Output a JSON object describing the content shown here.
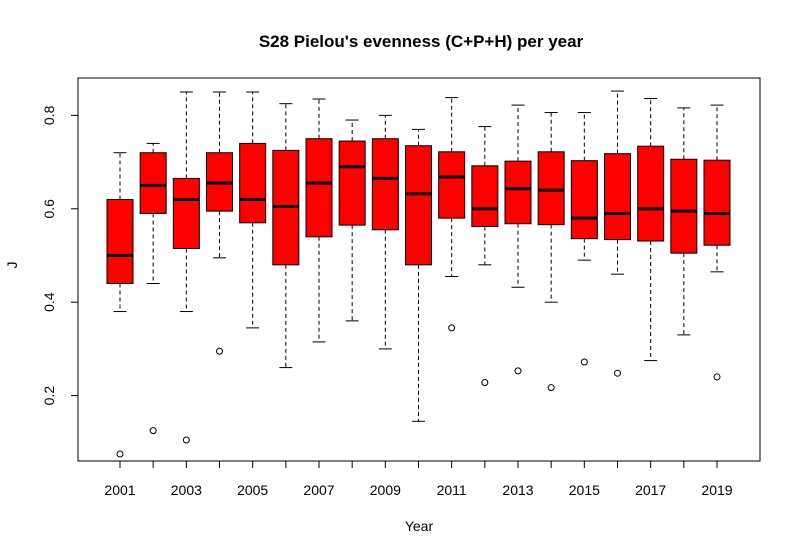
{
  "chart_data": {
    "type": "boxplot",
    "title": "S28 Pielou's evenness (C+P+H) per year",
    "xlabel": "Year",
    "ylabel": "J",
    "ylim": [
      0.06,
      0.88
    ],
    "y_ticks": [
      "0.2",
      "0.4",
      "0.6",
      "0.8"
    ],
    "x_tick_labels": [
      "2001",
      "2003",
      "2005",
      "2007",
      "2009",
      "2011",
      "2013",
      "2015",
      "2017",
      "2019"
    ],
    "box_color": "#ff0000",
    "grid": false,
    "categories": [
      "2001",
      "2002",
      "2003",
      "2004",
      "2005",
      "2006",
      "2007",
      "2008",
      "2009",
      "2010",
      "2011",
      "2012",
      "2013",
      "2014",
      "2015",
      "2016",
      "2017",
      "2018",
      "2019"
    ],
    "boxes": [
      {
        "year": "2001",
        "min": 0.38,
        "q1": 0.44,
        "median": 0.5,
        "q3": 0.62,
        "max": 0.72,
        "outliers": [
          0.075
        ]
      },
      {
        "year": "2002",
        "min": 0.44,
        "q1": 0.59,
        "median": 0.65,
        "q3": 0.72,
        "max": 0.74,
        "outliers": [
          0.125
        ]
      },
      {
        "year": "2003",
        "min": 0.38,
        "q1": 0.515,
        "median": 0.62,
        "q3": 0.665,
        "max": 0.85,
        "outliers": [
          0.105
        ]
      },
      {
        "year": "2004",
        "min": 0.495,
        "q1": 0.595,
        "median": 0.655,
        "q3": 0.72,
        "max": 0.85,
        "outliers": [
          0.295
        ]
      },
      {
        "year": "2005",
        "min": 0.345,
        "q1": 0.57,
        "median": 0.62,
        "q3": 0.74,
        "max": 0.85,
        "outliers": []
      },
      {
        "year": "2006",
        "min": 0.26,
        "q1": 0.48,
        "median": 0.605,
        "q3": 0.725,
        "max": 0.825,
        "outliers": []
      },
      {
        "year": "2007",
        "min": 0.315,
        "q1": 0.54,
        "median": 0.655,
        "q3": 0.75,
        "max": 0.835,
        "outliers": []
      },
      {
        "year": "2008",
        "min": 0.36,
        "q1": 0.565,
        "median": 0.69,
        "q3": 0.745,
        "max": 0.79,
        "outliers": []
      },
      {
        "year": "2009",
        "min": 0.3,
        "q1": 0.555,
        "median": 0.665,
        "q3": 0.75,
        "max": 0.8,
        "outliers": []
      },
      {
        "year": "2010",
        "min": 0.145,
        "q1": 0.48,
        "median": 0.632,
        "q3": 0.735,
        "max": 0.77,
        "outliers": []
      },
      {
        "year": "2011",
        "min": 0.455,
        "q1": 0.58,
        "median": 0.668,
        "q3": 0.722,
        "max": 0.838,
        "outliers": [
          0.345
        ]
      },
      {
        "year": "2012",
        "min": 0.48,
        "q1": 0.562,
        "median": 0.6,
        "q3": 0.692,
        "max": 0.776,
        "outliers": [
          0.228
        ]
      },
      {
        "year": "2013",
        "min": 0.432,
        "q1": 0.568,
        "median": 0.643,
        "q3": 0.702,
        "max": 0.822,
        "outliers": [
          0.253
        ]
      },
      {
        "year": "2014",
        "min": 0.4,
        "q1": 0.566,
        "median": 0.64,
        "q3": 0.722,
        "max": 0.806,
        "outliers": [
          0.217
        ]
      },
      {
        "year": "2015",
        "min": 0.49,
        "q1": 0.536,
        "median": 0.58,
        "q3": 0.703,
        "max": 0.806,
        "outliers": [
          0.272
        ]
      },
      {
        "year": "2016",
        "min": 0.46,
        "q1": 0.534,
        "median": 0.59,
        "q3": 0.718,
        "max": 0.852,
        "outliers": [
          0.248
        ]
      },
      {
        "year": "2017",
        "min": 0.275,
        "q1": 0.531,
        "median": 0.6,
        "q3": 0.734,
        "max": 0.836,
        "outliers": []
      },
      {
        "year": "2018",
        "min": 0.33,
        "q1": 0.505,
        "median": 0.595,
        "q3": 0.706,
        "max": 0.816,
        "outliers": []
      },
      {
        "year": "2019",
        "min": 0.465,
        "q1": 0.522,
        "median": 0.59,
        "q3": 0.704,
        "max": 0.822,
        "outliers": [
          0.24
        ]
      }
    ]
  }
}
